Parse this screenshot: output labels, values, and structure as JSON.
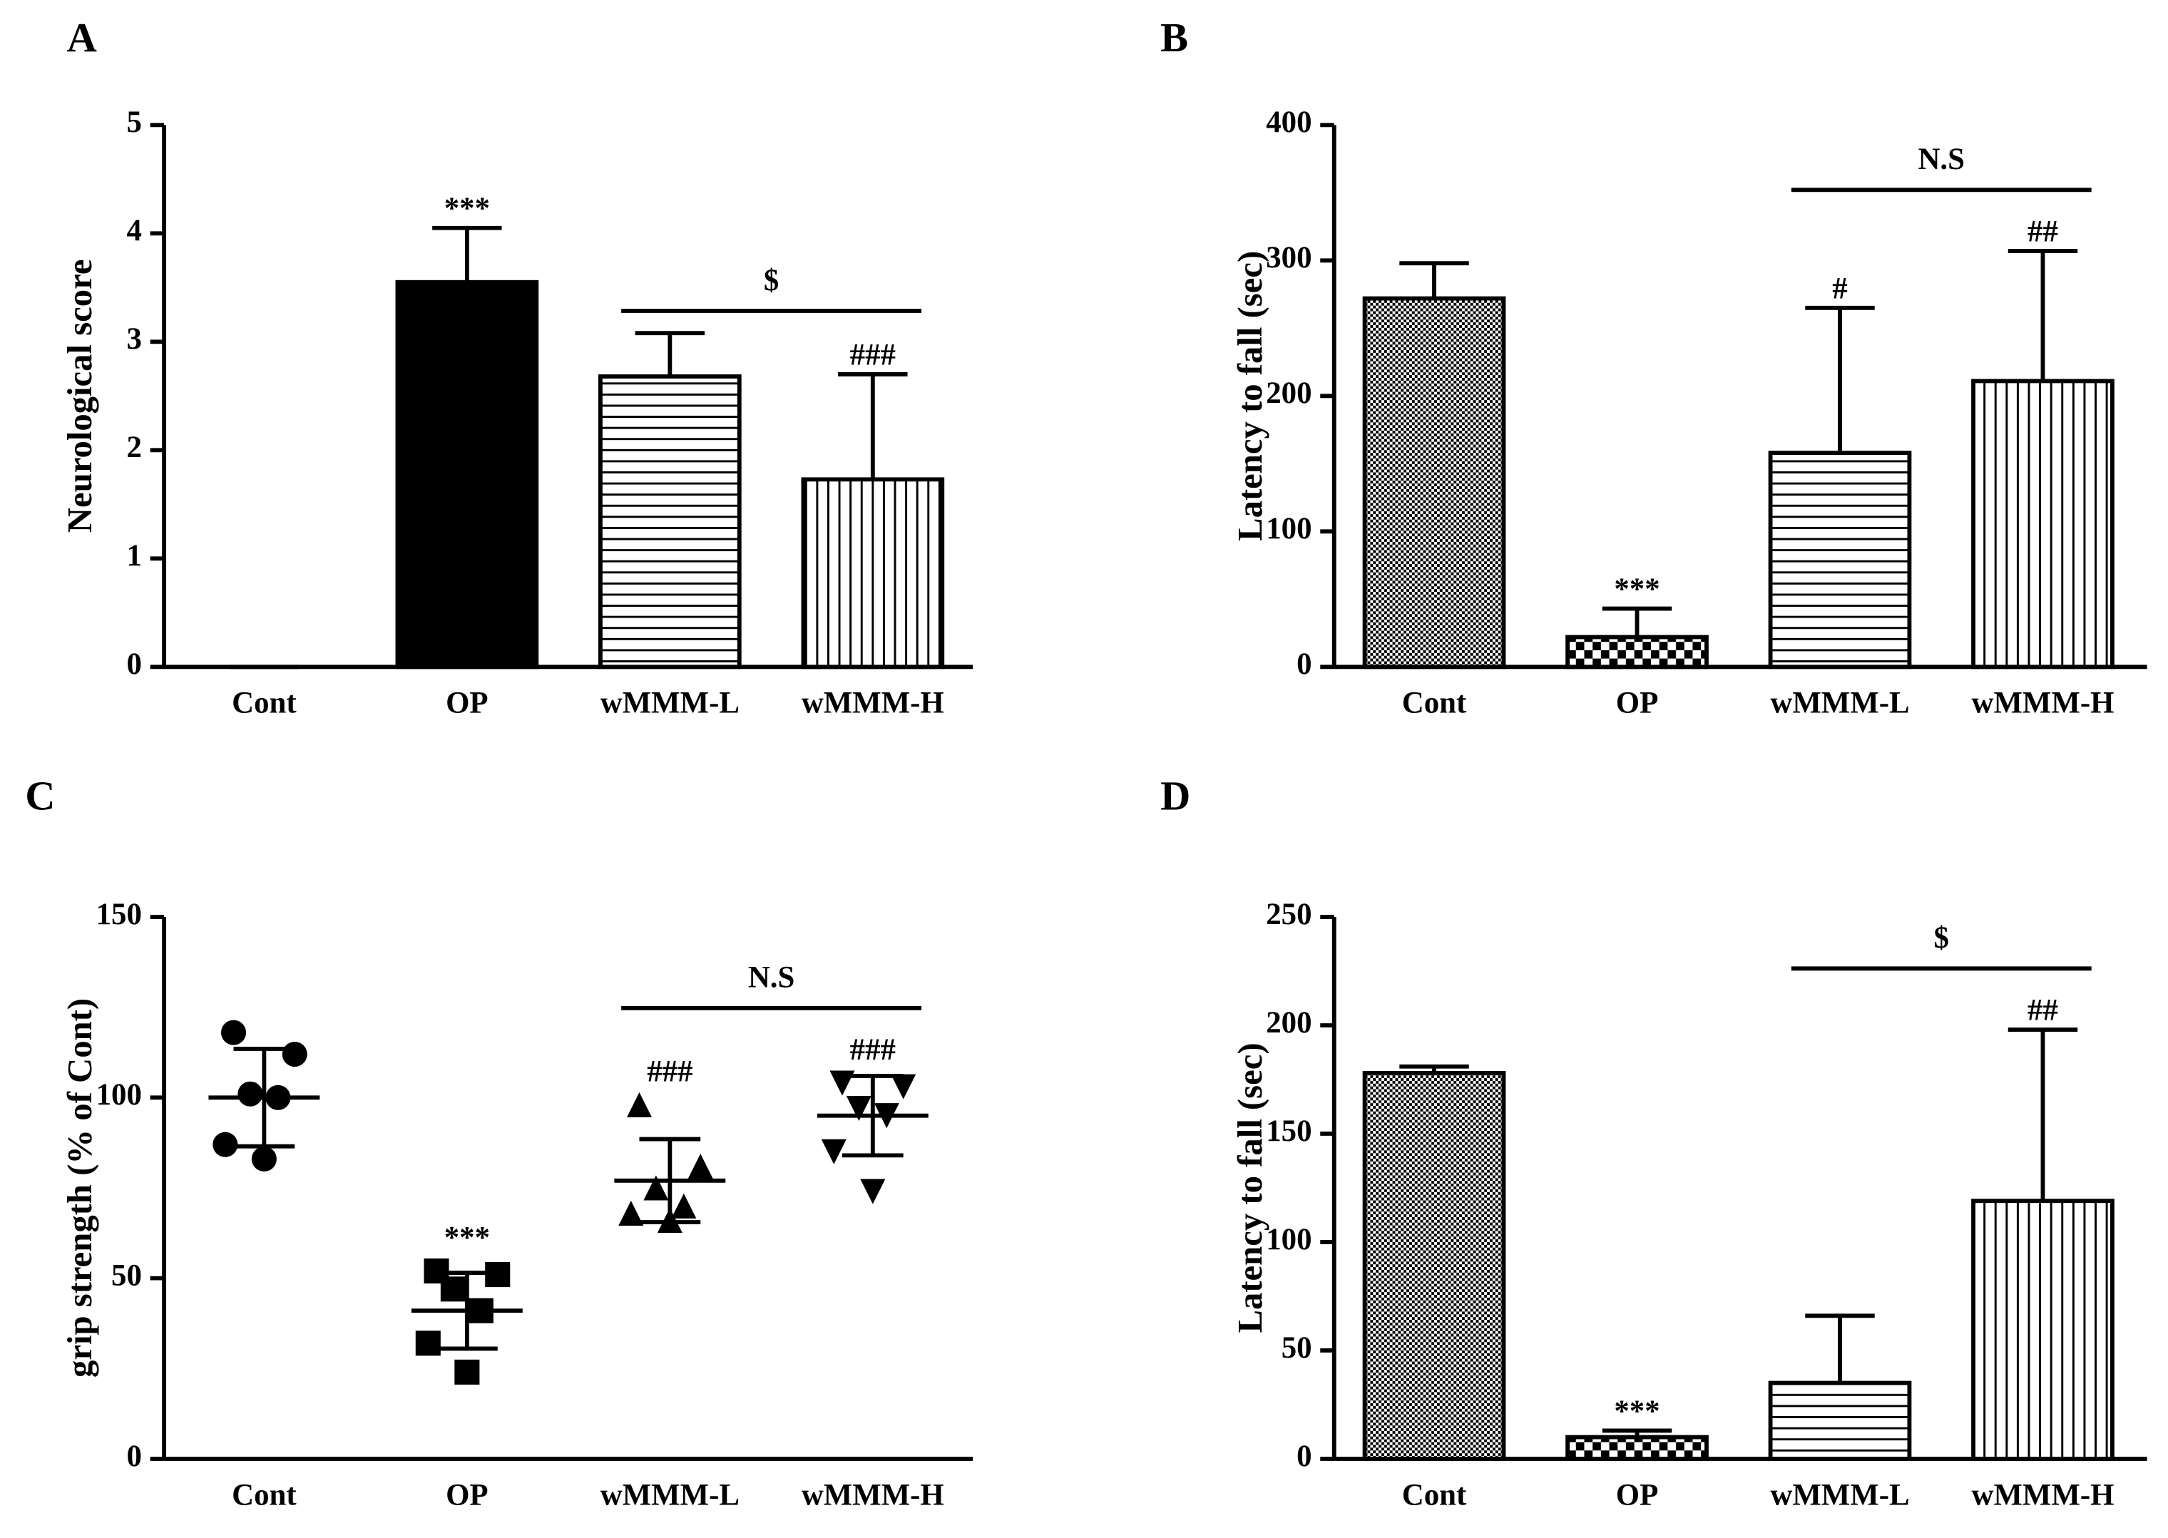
{
  "chart_data": [
    {
      "type": "bar",
      "panel": "A",
      "ylabel": "Neurological score",
      "categories": [
        "Cont",
        "OP",
        "wMMM-L",
        "wMMM-H"
      ],
      "values": [
        0,
        3.55,
        2.68,
        1.73
      ],
      "errors": [
        0,
        0.5,
        0.4,
        0.97
      ],
      "fills": [
        "black",
        "black",
        "hlines",
        "vlines"
      ],
      "annotations": [
        null,
        "***",
        null,
        "###"
      ],
      "bracket": {
        "text": "$",
        "categories": [
          "wMMM-L",
          "wMMM-H"
        ]
      },
      "ylim": [
        0,
        5
      ],
      "yticks": [
        0,
        1,
        2,
        3,
        4,
        5
      ]
    },
    {
      "type": "bar",
      "panel": "B",
      "ylabel": "Latency to fall (sec)",
      "categories": [
        "Cont",
        "OP",
        "wMMM-L",
        "wMMM-H"
      ],
      "values": [
        272,
        22,
        158,
        211
      ],
      "errors": [
        26,
        21,
        107,
        96
      ],
      "fills": [
        "dense",
        "checker",
        "hlines",
        "vlines"
      ],
      "annotations": [
        null,
        "***",
        "#",
        "##"
      ],
      "bracket": {
        "text": "N.S",
        "categories": [
          "wMMM-L",
          "wMMM-H"
        ]
      },
      "ylim": [
        0,
        400
      ],
      "yticks": [
        0,
        100,
        200,
        300,
        400
      ]
    },
    {
      "type": "scatter",
      "panel": "C",
      "ylabel": "grip strength (% of Cont)",
      "categories": [
        "Cont",
        "OP",
        "wMMM-L",
        "wMMM-H"
      ],
      "points": [
        [
          118,
          112,
          101,
          100,
          87,
          83
        ],
        [
          52,
          51,
          47,
          41,
          32,
          24
        ],
        [
          98,
          81,
          75,
          70,
          68,
          66
        ],
        [
          104,
          103,
          97,
          95,
          85,
          74
        ]
      ],
      "means": [
        100,
        41,
        77,
        95
      ],
      "sds": [
        13.5,
        10.5,
        11.5,
        11
      ],
      "markers": [
        "circle",
        "square",
        "triangle-up",
        "triangle-down"
      ],
      "annotations": [
        null,
        "***",
        "###",
        "###"
      ],
      "bracket": {
        "text": "N.S",
        "categories": [
          "wMMM-L",
          "wMMM-H"
        ]
      },
      "ylim": [
        0,
        150
      ],
      "yticks": [
        0,
        50,
        100,
        150
      ]
    },
    {
      "type": "bar",
      "panel": "D",
      "ylabel": "Latency to fall (sec)",
      "categories": [
        "Cont",
        "OP",
        "wMMM-L",
        "wMMM-H"
      ],
      "values": [
        178,
        10,
        35,
        119
      ],
      "errors": [
        3,
        3,
        31,
        79
      ],
      "fills": [
        "dense",
        "checker",
        "hlines",
        "vlines"
      ],
      "annotations": [
        null,
        "***",
        null,
        "##"
      ],
      "bracket": {
        "text": "$",
        "categories": [
          "wMMM-L",
          "wMMM-H"
        ]
      },
      "ylim": [
        0,
        250
      ],
      "yticks": [
        0,
        50,
        100,
        150,
        200,
        250
      ]
    }
  ]
}
